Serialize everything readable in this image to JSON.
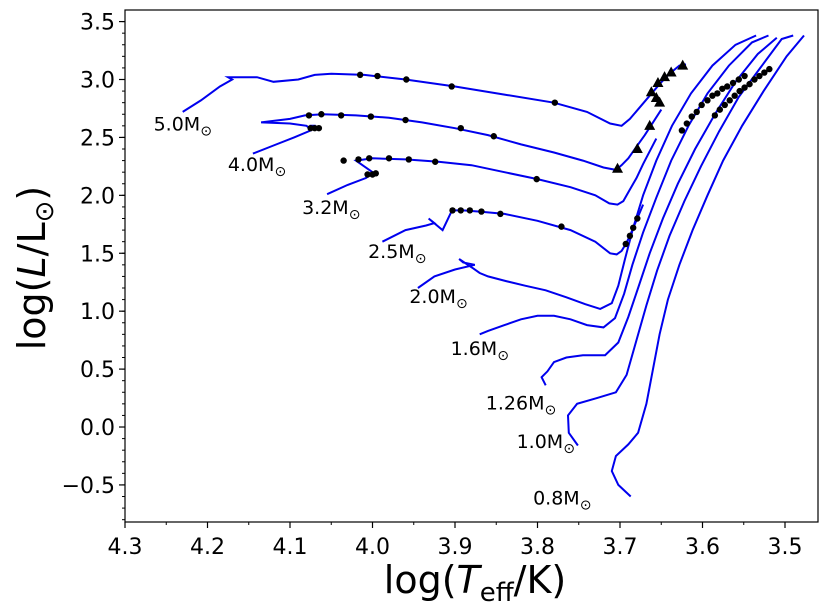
{
  "chart_data": {
    "type": "line",
    "title": "",
    "xlabel": {
      "prefix": "log(",
      "var": "T",
      "sub": "eff",
      "suffix": "/K)"
    },
    "ylabel": {
      "prefix": "log(",
      "var": "L",
      "mid": "/L",
      "sub": "⊙",
      "suffix": ")"
    },
    "xlim": [
      4.3,
      3.46
    ],
    "ylim": [
      -0.82,
      3.6
    ],
    "xticks": [
      4.3,
      4.2,
      4.1,
      4.0,
      3.9,
      3.8,
      3.7,
      3.6,
      3.5
    ],
    "xtick_labels": [
      "4.3",
      "4.2",
      "4.1",
      "4.0",
      "3.9",
      "3.8",
      "3.7",
      "3.6",
      "3.5"
    ],
    "yticks": [
      -0.5,
      0.0,
      0.5,
      1.0,
      1.5,
      2.0,
      2.5,
      3.0,
      3.5
    ],
    "ytick_labels": [
      "−0.5",
      "0.0",
      "0.5",
      "1.0",
      "1.5",
      "2.0",
      "2.5",
      "3.0",
      "3.5"
    ],
    "line_color": "#0000ee",
    "series": [
      {
        "name": "0.8M⊙",
        "mass": "0.8",
        "sun": "⊙",
        "label_pos": [
          3.77,
          -0.67
        ],
        "points": [
          [
            3.687,
            -0.6
          ],
          [
            3.702,
            -0.5
          ],
          [
            3.71,
            -0.38
          ],
          [
            3.705,
            -0.25
          ],
          [
            3.69,
            -0.15
          ],
          [
            3.678,
            -0.05
          ],
          [
            3.668,
            0.2
          ],
          [
            3.66,
            0.5
          ],
          [
            3.652,
            0.8
          ],
          [
            3.642,
            1.1
          ],
          [
            3.628,
            1.4
          ],
          [
            3.612,
            1.7
          ],
          [
            3.594,
            2.0
          ],
          [
            3.575,
            2.3
          ],
          [
            3.552,
            2.6
          ],
          [
            3.526,
            2.9
          ],
          [
            3.498,
            3.2
          ],
          [
            3.477,
            3.38
          ]
        ],
        "dots": []
      },
      {
        "name": "1.0M⊙",
        "mass": "1.0",
        "sun": "⊙",
        "label_pos": [
          3.79,
          -0.18
        ],
        "points": [
          [
            3.751,
            -0.16
          ],
          [
            3.762,
            -0.05
          ],
          [
            3.763,
            0.1
          ],
          [
            3.752,
            0.2
          ],
          [
            3.728,
            0.25
          ],
          [
            3.705,
            0.3
          ],
          [
            3.692,
            0.45
          ],
          [
            3.68,
            0.75
          ],
          [
            3.668,
            1.05
          ],
          [
            3.655,
            1.35
          ],
          [
            3.64,
            1.65
          ],
          [
            3.622,
            1.95
          ],
          [
            3.602,
            2.25
          ],
          [
            3.58,
            2.55
          ],
          [
            3.556,
            2.85
          ],
          [
            3.53,
            3.1
          ],
          [
            3.504,
            3.35
          ],
          [
            3.49,
            3.38
          ]
        ],
        "dots": []
      },
      {
        "name": "1.26M⊙",
        "mass": "1.26",
        "sun": "⊙",
        "label_pos": [
          3.82,
          0.15
        ],
        "points": [
          [
            3.79,
            0.36
          ],
          [
            3.795,
            0.43
          ],
          [
            3.788,
            0.48
          ],
          [
            3.78,
            0.56
          ],
          [
            3.765,
            0.6
          ],
          [
            3.745,
            0.62
          ],
          [
            3.718,
            0.62
          ],
          [
            3.702,
            0.73
          ],
          [
            3.69,
            0.95
          ],
          [
            3.678,
            1.2
          ],
          [
            3.664,
            1.5
          ],
          [
            3.648,
            1.8
          ],
          [
            3.63,
            2.1
          ],
          [
            3.609,
            2.4
          ],
          [
            3.585,
            2.7
          ],
          [
            3.56,
            2.98
          ],
          [
            3.533,
            3.22
          ],
          [
            3.51,
            3.36
          ]
        ],
        "dots": []
      },
      {
        "name": "1.6M⊙",
        "mass": "1.6",
        "sun": "⊙",
        "label_pos": [
          3.87,
          0.62
        ],
        "points": [
          [
            3.87,
            0.8
          ],
          [
            3.86,
            0.83
          ],
          [
            3.84,
            0.88
          ],
          [
            3.82,
            0.93
          ],
          [
            3.8,
            0.96
          ],
          [
            3.78,
            0.96
          ],
          [
            3.76,
            0.93
          ],
          [
            3.74,
            0.88
          ],
          [
            3.72,
            0.86
          ],
          [
            3.706,
            0.94
          ],
          [
            3.695,
            1.15
          ],
          [
            3.685,
            1.4
          ],
          [
            3.672,
            1.68
          ],
          [
            3.656,
            1.98
          ],
          [
            3.638,
            2.3
          ],
          [
            3.617,
            2.6
          ],
          [
            3.594,
            2.88
          ],
          [
            3.568,
            3.12
          ],
          [
            3.54,
            3.32
          ],
          [
            3.52,
            3.38
          ]
        ],
        "dots": []
      },
      {
        "name": "2.0M⊙",
        "mass": "2.0",
        "sun": "⊙",
        "label_pos": [
          3.92,
          1.07
        ],
        "points": [
          [
            3.945,
            1.2
          ],
          [
            3.925,
            1.3
          ],
          [
            3.9,
            1.36
          ],
          [
            3.876,
            1.4
          ],
          [
            3.89,
            1.42
          ],
          [
            3.895,
            1.45
          ],
          [
            3.878,
            1.37
          ],
          [
            3.87,
            1.33
          ],
          [
            3.86,
            1.3
          ],
          [
            3.838,
            1.26
          ],
          [
            3.815,
            1.22
          ],
          [
            3.79,
            1.18
          ],
          [
            3.765,
            1.12
          ],
          [
            3.742,
            1.06
          ],
          [
            3.724,
            1.02
          ],
          [
            3.71,
            1.07
          ],
          [
            3.702,
            1.22
          ],
          [
            3.694,
            1.45
          ],
          [
            3.684,
            1.72
          ],
          [
            3.672,
            2.0
          ],
          [
            3.656,
            2.3
          ],
          [
            3.637,
            2.6
          ],
          [
            3.614,
            2.88
          ],
          [
            3.588,
            3.12
          ],
          [
            3.56,
            3.3
          ],
          [
            3.535,
            3.38
          ]
        ],
        "dots": []
      },
      {
        "name": "2.5M⊙",
        "mass": "2.5",
        "sun": "⊙",
        "label_pos": [
          3.97,
          1.46
        ],
        "points": [
          [
            3.988,
            1.6
          ],
          [
            3.96,
            1.7
          ],
          [
            3.935,
            1.74
          ],
          [
            3.925,
            1.76
          ],
          [
            3.932,
            1.8
          ],
          [
            3.915,
            1.7
          ],
          [
            3.905,
            1.85
          ],
          [
            3.9,
            1.87
          ],
          [
            3.89,
            1.87
          ],
          [
            3.87,
            1.86
          ],
          [
            3.84,
            1.84
          ],
          [
            3.8,
            1.78
          ],
          [
            3.76,
            1.7
          ],
          [
            3.73,
            1.6
          ],
          [
            3.712,
            1.5
          ],
          [
            3.704,
            1.49
          ],
          [
            3.698,
            1.52
          ],
          [
            3.693,
            1.58
          ],
          [
            3.688,
            1.65
          ],
          [
            3.684,
            1.72
          ],
          [
            3.679,
            1.8
          ],
          [
            3.672,
            1.92
          ]
        ],
        "dots": [
          [
            3.903,
            1.87
          ],
          [
            3.893,
            1.87
          ],
          [
            3.882,
            1.87
          ],
          [
            3.868,
            1.86
          ],
          [
            3.845,
            1.84
          ],
          [
            3.771,
            1.73
          ],
          [
            3.693,
            1.58
          ],
          [
            3.688,
            1.65
          ],
          [
            3.684,
            1.72
          ],
          [
            3.679,
            1.8
          ]
        ]
      },
      {
        "name": "3.2M⊙",
        "mass": "3.2",
        "sun": "⊙",
        "label_pos": [
          4.05,
          1.84
        ],
        "points": [
          [
            4.055,
            2.01
          ],
          [
            4.03,
            2.09
          ],
          [
            4.008,
            2.15
          ],
          [
            4.002,
            2.18
          ],
          [
            4.008,
            2.17
          ],
          [
            3.997,
            2.18
          ],
          [
            4.0,
            2.2
          ],
          [
            4.01,
            2.25
          ],
          [
            4.02,
            2.3
          ],
          [
            4.0,
            2.32
          ],
          [
            3.96,
            2.31
          ],
          [
            3.92,
            2.29
          ],
          [
            3.88,
            2.26
          ],
          [
            3.84,
            2.2
          ],
          [
            3.8,
            2.14
          ],
          [
            3.76,
            2.07
          ],
          [
            3.73,
            2.0
          ],
          [
            3.713,
            1.93
          ],
          [
            3.703,
            1.92
          ],
          [
            3.696,
            1.95
          ],
          [
            3.688,
            2.05
          ],
          [
            3.68,
            2.15
          ],
          [
            3.672,
            2.27
          ],
          [
            3.664,
            2.38
          ],
          [
            3.656,
            2.49
          ]
        ],
        "dots": [
          [
            4.006,
            2.18
          ],
          [
            4.0,
            2.18
          ],
          [
            3.996,
            2.19
          ],
          [
            4.035,
            2.3
          ],
          [
            4.017,
            2.31
          ],
          [
            4.004,
            2.32
          ],
          [
            3.98,
            2.32
          ],
          [
            3.956,
            2.31
          ],
          [
            3.924,
            2.29
          ],
          [
            3.801,
            2.14
          ]
        ]
      },
      {
        "name": "4.0M⊙",
        "mass": "4.0",
        "sun": "⊙",
        "label_pos": [
          4.14,
          2.21
        ],
        "points": [
          [
            4.145,
            2.36
          ],
          [
            4.12,
            2.43
          ],
          [
            4.095,
            2.5
          ],
          [
            4.075,
            2.56
          ],
          [
            4.07,
            2.58
          ],
          [
            4.07,
            2.6
          ],
          [
            4.075,
            2.6
          ],
          [
            4.075,
            2.57
          ],
          [
            4.08,
            2.6
          ],
          [
            4.1,
            2.62
          ],
          [
            4.135,
            2.63
          ],
          [
            4.1,
            2.66
          ],
          [
            4.082,
            2.69
          ],
          [
            4.06,
            2.7
          ],
          [
            4.02,
            2.69
          ],
          [
            3.98,
            2.67
          ],
          [
            3.94,
            2.63
          ],
          [
            3.9,
            2.58
          ],
          [
            3.86,
            2.52
          ],
          [
            3.82,
            2.44
          ],
          [
            3.78,
            2.37
          ],
          [
            3.745,
            2.3
          ],
          [
            3.72,
            2.24
          ],
          [
            3.705,
            2.22
          ],
          [
            3.698,
            2.26
          ],
          [
            3.69,
            2.32
          ],
          [
            3.68,
            2.42
          ],
          [
            3.67,
            2.52
          ],
          [
            3.66,
            2.63
          ],
          [
            3.65,
            2.74
          ]
        ],
        "dots": [
          [
            4.075,
            2.58
          ],
          [
            4.07,
            2.58
          ],
          [
            4.065,
            2.58
          ],
          [
            4.077,
            2.69
          ],
          [
            4.062,
            2.7
          ],
          [
            4.038,
            2.69
          ],
          [
            4.002,
            2.68
          ],
          [
            3.96,
            2.65
          ],
          [
            3.893,
            2.58
          ],
          [
            3.853,
            2.51
          ]
        ],
        "triangles": [
          [
            3.703,
            2.23
          ],
          [
            3.679,
            2.4
          ],
          [
            3.664,
            2.6
          ],
          [
            3.652,
            2.8
          ]
        ]
      },
      {
        "name": "5.0M⊙",
        "mass": "5.0",
        "sun": "⊙",
        "label_pos": [
          4.23,
          2.56
        ],
        "points": [
          [
            4.23,
            2.72
          ],
          [
            4.208,
            2.82
          ],
          [
            4.185,
            2.94
          ],
          [
            4.17,
            3.0
          ],
          [
            4.175,
            3.02
          ],
          [
            4.14,
            3.02
          ],
          [
            4.12,
            2.98
          ],
          [
            4.09,
            3.0
          ],
          [
            4.07,
            3.04
          ],
          [
            4.05,
            3.05
          ],
          [
            4.01,
            3.04
          ],
          [
            3.96,
            3.0
          ],
          [
            3.9,
            2.94
          ],
          [
            3.84,
            2.87
          ],
          [
            3.78,
            2.8
          ],
          [
            3.74,
            2.72
          ],
          [
            3.712,
            2.62
          ],
          [
            3.698,
            2.6
          ],
          [
            3.688,
            2.66
          ],
          [
            3.676,
            2.76
          ],
          [
            3.664,
            2.86
          ],
          [
            3.652,
            2.96
          ],
          [
            3.64,
            3.05
          ],
          [
            3.628,
            3.12
          ],
          [
            3.62,
            3.13
          ]
        ],
        "dots": [
          [
            4.015,
            3.04
          ],
          [
            3.994,
            3.03
          ],
          [
            3.959,
            3.0
          ],
          [
            3.904,
            2.94
          ],
          [
            3.779,
            2.8
          ]
        ],
        "triangles": [
          [
            3.662,
            2.89
          ],
          [
            3.654,
            2.97
          ],
          [
            3.646,
            3.02
          ],
          [
            3.638,
            3.06
          ],
          [
            3.624,
            3.12
          ],
          [
            3.656,
            2.84
          ]
        ]
      }
    ],
    "rgb_dots": [
      [
        3.625,
        2.56
      ],
      [
        3.619,
        2.62
      ],
      [
        3.613,
        2.68
      ],
      [
        3.607,
        2.72
      ],
      [
        3.601,
        2.78
      ],
      [
        3.594,
        2.82
      ],
      [
        3.588,
        2.86
      ],
      [
        3.582,
        2.88
      ],
      [
        3.576,
        2.92
      ],
      [
        3.57,
        2.94
      ],
      [
        3.563,
        2.97
      ],
      [
        3.556,
        3.0
      ],
      [
        3.549,
        3.03
      ],
      [
        3.585,
        2.69
      ],
      [
        3.579,
        2.74
      ],
      [
        3.573,
        2.78
      ],
      [
        3.567,
        2.82
      ],
      [
        3.561,
        2.86
      ],
      [
        3.555,
        2.9
      ],
      [
        3.549,
        2.93
      ],
      [
        3.543,
        2.96
      ],
      [
        3.537,
        3.0
      ],
      [
        3.531,
        3.03
      ],
      [
        3.525,
        3.06
      ],
      [
        3.519,
        3.09
      ]
    ]
  }
}
